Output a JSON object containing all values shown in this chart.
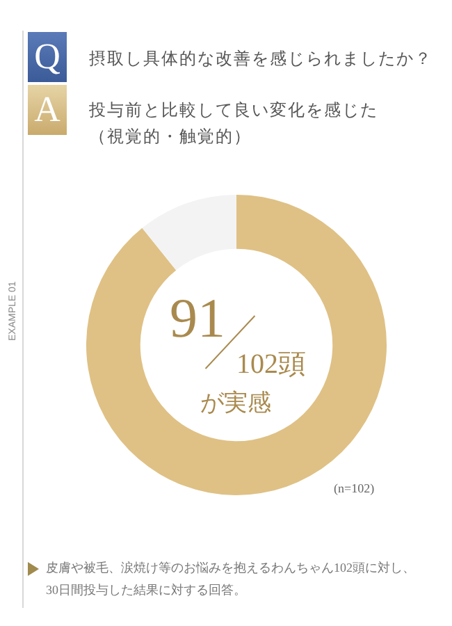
{
  "chart_data": {
    "type": "donut",
    "title": "摂取し具体的な改善を感じられましたか？",
    "subtitle": "投与前と比較して良い変化を感じた（視覚的・触覚的）",
    "categories": [
      null,
      null
    ],
    "values": [
      89.2,
      10.8
    ],
    "colors": [
      "#dfc185",
      "#f3f3f3"
    ],
    "legend": false,
    "annotations": [
      "Q",
      "A",
      "EXAMPLE 01",
      "91",
      "102頭",
      "が実感",
      "(n=102)",
      "皮膚や被毛、涙焼け等のお悩みを抱えるわんちゃん102頭に対し、30日間投与した結果に対する回答。"
    ]
  }
}
